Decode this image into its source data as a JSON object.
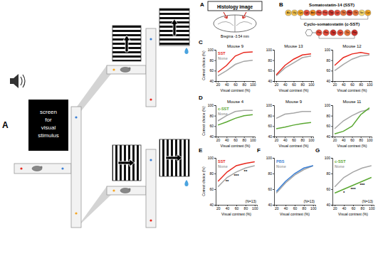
{
  "diagram": {
    "panel_a": {
      "label": "A",
      "screen_text": [
        "screen",
        "for",
        "visual",
        "stimulus"
      ]
    },
    "histology": {
      "label": "A",
      "title": "Histology image",
      "bregma": "Bregma -3.54 mm"
    },
    "peptides": {
      "label": "B",
      "sst_title": "Somatostatin-14 (SST)",
      "sst_residues": [
        "Ala",
        "Gly",
        "Cys",
        "Lys",
        "Asn",
        "Phe",
        "Phe",
        "Trp",
        "Lys",
        "Thr",
        "Phe",
        "Thr",
        "Ser",
        "Cys"
      ],
      "csst_title": "Cyclo-somatostatin (c-SST)",
      "csst_residues": [
        "Pro",
        "Phe",
        "Trp",
        "Lys",
        "Thr",
        "Phe"
      ]
    }
  },
  "chart_data": [
    {
      "type": "line",
      "panel": "C",
      "title": "Mouse 9",
      "xlabel": "Visual contrast (%)",
      "ylabel": "Correct choice (%)",
      "x": [
        20,
        40,
        60,
        80,
        100
      ],
      "xlim": [
        15,
        105
      ],
      "xticks": [
        20,
        40,
        60,
        80,
        100
      ],
      "ylim": [
        40,
        100
      ],
      "yticks": [
        40,
        60,
        80,
        100
      ],
      "legend": "top-left",
      "series": [
        {
          "name": "SST",
          "color": "#e8281e",
          "values": [
            57,
            70,
            88,
            95,
            96
          ]
        },
        {
          "name": "None",
          "color": "#a6a6a6",
          "values": [
            50,
            60,
            72,
            78,
            80
          ]
        }
      ]
    },
    {
      "type": "line",
      "title": "Mouse 13",
      "xlabel": "Visual contrast (%)",
      "x": [
        20,
        40,
        60,
        80,
        100
      ],
      "xlim": [
        15,
        105
      ],
      "xticks": [
        20,
        40,
        60,
        80,
        100
      ],
      "ylim": [
        40,
        100
      ],
      "yticks": [
        40,
        60,
        80,
        100
      ],
      "series": [
        {
          "color": "#e8281e",
          "values": [
            52,
            70,
            82,
            90,
            92
          ]
        },
        {
          "color": "#a6a6a6",
          "values": [
            50,
            65,
            75,
            85,
            88
          ]
        }
      ]
    },
    {
      "type": "line",
      "title": "Mouse 12",
      "xlabel": "Visual contrast (%)",
      "x": [
        20,
        40,
        60,
        80,
        100
      ],
      "xlim": [
        15,
        105
      ],
      "xticks": [
        20,
        40,
        60,
        80,
        100
      ],
      "ylim": [
        40,
        100
      ],
      "yticks": [
        40,
        60,
        80,
        100
      ],
      "series": [
        {
          "color": "#e8281e",
          "values": [
            70,
            85,
            92,
            95,
            92
          ]
        },
        {
          "color": "#a6a6a6",
          "values": [
            60,
            72,
            82,
            88,
            90
          ]
        }
      ]
    },
    {
      "type": "line",
      "panel": "D",
      "title": "Mouse 4",
      "xlabel": "Visual contrast (%)",
      "ylabel": "Correct choice (%)",
      "x": [
        20,
        40,
        60,
        80,
        100
      ],
      "xlim": [
        15,
        105
      ],
      "xticks": [
        20,
        40,
        60,
        80,
        100
      ],
      "ylim": [
        40,
        100
      ],
      "yticks": [
        40,
        60,
        80,
        100
      ],
      "legend": "top-left",
      "series": [
        {
          "name": "c-SST",
          "color": "#5aa832",
          "values": [
            62,
            68,
            75,
            80,
            82
          ]
        },
        {
          "name": "None",
          "color": "#a6a6a6",
          "values": [
            70,
            80,
            88,
            90,
            90
          ]
        }
      ]
    },
    {
      "type": "line",
      "title": "Mouse 9",
      "xlabel": "Visual contrast (%)",
      "x": [
        20,
        40,
        60,
        80,
        100
      ],
      "xlim": [
        15,
        105
      ],
      "xticks": [
        20,
        40,
        60,
        80,
        100
      ],
      "ylim": [
        40,
        100
      ],
      "yticks": [
        40,
        60,
        80,
        100
      ],
      "series": [
        {
          "color": "#5aa832",
          "values": [
            55,
            58,
            62,
            65,
            67
          ]
        },
        {
          "color": "#a6a6a6",
          "values": [
            75,
            83,
            85,
            88,
            88
          ]
        }
      ]
    },
    {
      "type": "line",
      "title": "Mouse 11",
      "xlabel": "Visual contrast (%)",
      "x": [
        20,
        40,
        60,
        80,
        100
      ],
      "xlim": [
        15,
        105
      ],
      "xticks": [
        20,
        40,
        60,
        80,
        100
      ],
      "ylim": [
        40,
        100
      ],
      "yticks": [
        40,
        60,
        80,
        100
      ],
      "series": [
        {
          "color": "#5aa832",
          "values": [
            45,
            50,
            60,
            82,
            95
          ]
        },
        {
          "color": "#a6a6a6",
          "values": [
            55,
            70,
            80,
            88,
            92
          ]
        }
      ]
    },
    {
      "type": "line",
      "panel": "E",
      "xlabel": "Visual contrast (%)",
      "ylabel": "Correct choice (%)",
      "x": [
        20,
        40,
        60,
        80,
        100
      ],
      "xlim": [
        15,
        105
      ],
      "xticks": [
        20,
        40,
        60,
        80,
        100
      ],
      "ylim": [
        40,
        100
      ],
      "yticks": [
        40,
        60,
        80,
        100
      ],
      "legend": "top-left",
      "note": "(N=13)",
      "significance": [
        {
          "x": 40,
          "label": "**"
        },
        {
          "x": 60,
          "label": "***"
        },
        {
          "x": 80,
          "label": "**"
        }
      ],
      "series": [
        {
          "name": "SST",
          "color": "#e8281e",
          "values": [
            70,
            82,
            90,
            93,
            95
          ]
        },
        {
          "name": "None",
          "color": "#a6a6a6",
          "values": [
            63,
            75,
            82,
            87,
            90
          ]
        }
      ]
    },
    {
      "type": "line",
      "panel": "F",
      "xlabel": "Visual contrast (%)",
      "x": [
        20,
        40,
        60,
        80,
        100
      ],
      "xlim": [
        15,
        105
      ],
      "xticks": [
        20,
        40,
        60,
        80,
        100
      ],
      "ylim": [
        40,
        100
      ],
      "yticks": [
        40,
        60,
        80,
        100
      ],
      "legend": "top-left",
      "note": "(N=13)",
      "series": [
        {
          "name": "PBS",
          "color": "#3a7fd5",
          "values": [
            57,
            70,
            80,
            87,
            90
          ]
        },
        {
          "name": "None",
          "color": "#a6a6a6",
          "values": [
            55,
            68,
            78,
            85,
            90
          ]
        }
      ]
    },
    {
      "type": "line",
      "panel": "G",
      "xlabel": "Visual contrast (%)",
      "x": [
        20,
        40,
        60,
        80,
        100
      ],
      "xlim": [
        15,
        105
      ],
      "xticks": [
        20,
        40,
        60,
        80,
        100
      ],
      "ylim": [
        40,
        100
      ],
      "yticks": [
        40,
        60,
        80,
        100
      ],
      "legend": "top-left",
      "note": "(N=13)",
      "significance": [
        {
          "x": 40,
          "label": "*"
        },
        {
          "x": 60,
          "label": "***"
        },
        {
          "x": 80,
          "label": "***"
        }
      ],
      "series": [
        {
          "name": "c-SST",
          "color": "#5aa832",
          "values": [
            55,
            60,
            65,
            70,
            75
          ]
        },
        {
          "name": "None",
          "color": "#a6a6a6",
          "values": [
            63,
            75,
            82,
            87,
            90
          ]
        }
      ]
    }
  ]
}
